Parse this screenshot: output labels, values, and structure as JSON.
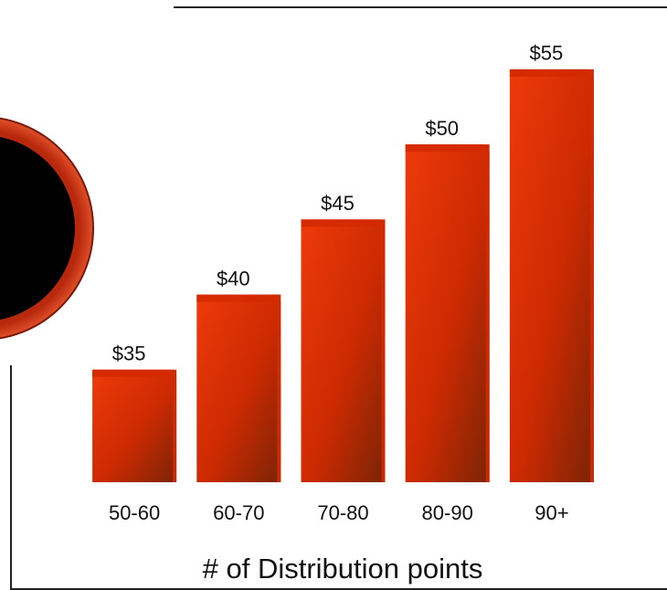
{
  "chart_data": {
    "type": "bar",
    "categories": [
      "50-60",
      "60-70",
      "70-80",
      "80-90",
      "90+"
    ],
    "values": [
      35,
      40,
      45,
      50,
      55
    ],
    "value_labels": [
      "$35",
      "$40",
      "$45",
      "$50",
      "$55"
    ],
    "color": "#d42a00",
    "ylim": [
      27.5,
      57
    ],
    "x_label": "# of Distribution points"
  }
}
